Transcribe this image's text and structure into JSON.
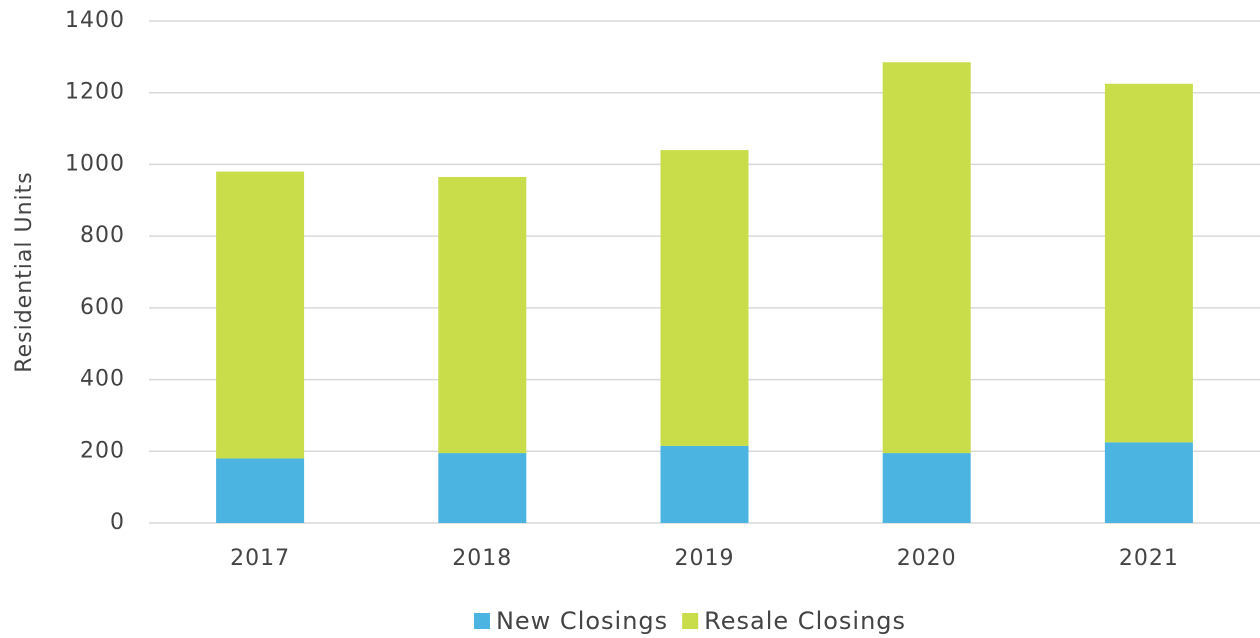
{
  "chart_data": {
    "type": "stacked_bar",
    "y_label": "Residential Units",
    "categories": [
      "2017",
      "2018",
      "2019",
      "2020",
      "2021"
    ],
    "series": [
      {
        "name": "New Closings",
        "color": "#4bb4e0",
        "values": [
          180,
          195,
          215,
          195,
          225
        ]
      },
      {
        "name": "Resale Closings",
        "color": "#c9dc4a",
        "values": [
          800,
          770,
          825,
          1090,
          1000
        ]
      }
    ],
    "ylim": [
      0,
      1400
    ],
    "yticks": [
      0,
      200,
      400,
      600,
      800,
      1000,
      1200,
      1400
    ],
    "grid": true,
    "legend": "bottom"
  }
}
